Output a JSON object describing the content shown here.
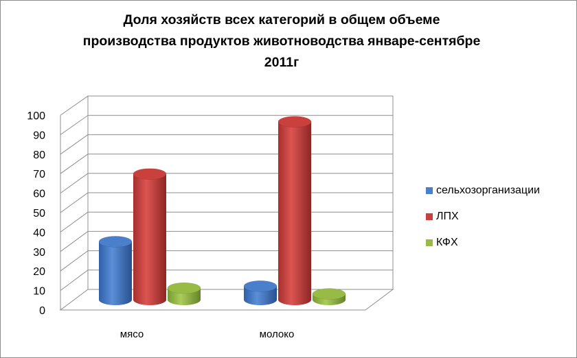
{
  "chart_data": {
    "type": "bar",
    "title_lines": [
      "Доля хозяйств всех категорий в общем объеме",
      "производства продуктов животноводства январе-сентябре",
      "2011г"
    ],
    "categories": [
      "мясо",
      "молоко"
    ],
    "series": [
      {
        "name": "сельхозорганизации",
        "values": [
          30,
          7
        ],
        "color": "#4a7fcb"
      },
      {
        "name": "ЛПХ",
        "values": [
          65,
          92
        ],
        "color": "#c9403d"
      },
      {
        "name": "КФХ",
        "values": [
          6,
          3
        ],
        "color": "#98bb45"
      }
    ],
    "y_ticks": [
      "0",
      "10",
      "20",
      "30",
      "40",
      "50",
      "60",
      "70",
      "80",
      "90",
      "100"
    ],
    "ylim": [
      0,
      100
    ],
    "grid": true,
    "style": "3d-cylinder",
    "legend_position": "right"
  }
}
